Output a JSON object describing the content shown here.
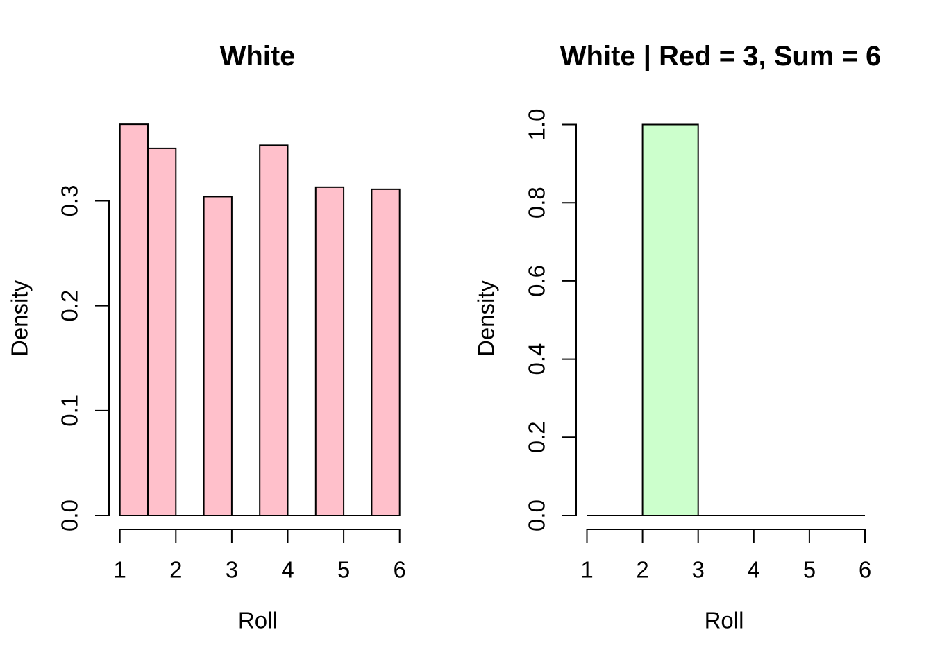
{
  "figure": {
    "background": "#ffffff",
    "text_color": "#000000",
    "axis_color": "#000000"
  },
  "chart_data": [
    {
      "type": "bar",
      "subtype": "histogram-density",
      "title": "White",
      "xlabel": "Roll",
      "ylabel": "Density",
      "x_tick_labels": [
        "1",
        "2",
        "3",
        "4",
        "5",
        "6"
      ],
      "x_ticks": [
        1,
        2,
        3,
        4,
        5,
        6
      ],
      "y_tick_labels": [
        "0.0",
        "0.1",
        "0.2",
        "0.3"
      ],
      "y_ticks": [
        0.0,
        0.1,
        0.2,
        0.3
      ],
      "xlim": [
        1,
        6
      ],
      "ylim": [
        0,
        0.3
      ],
      "breaks": [
        1,
        1.5,
        2,
        2.5,
        3,
        3.5,
        4,
        4.5,
        5,
        5.5,
        6
      ],
      "densities": [
        0.373,
        0.35,
        0,
        0.304,
        0,
        0.353,
        0,
        0.313,
        0,
        0.311
      ],
      "baseline": [
        1,
        6
      ],
      "bar_fill": "#FFC0CB",
      "bar_border": "#000000",
      "grid": false,
      "legend": null
    },
    {
      "type": "bar",
      "subtype": "histogram-density",
      "title": "White | Red = 3, Sum = 6",
      "xlabel": "Roll",
      "ylabel": "Density",
      "x_tick_labels": [
        "1",
        "2",
        "3",
        "4",
        "5",
        "6"
      ],
      "x_ticks": [
        1,
        2,
        3,
        4,
        5,
        6
      ],
      "y_tick_labels": [
        "0.0",
        "0.2",
        "0.4",
        "0.6",
        "0.8",
        "1.0"
      ],
      "y_ticks": [
        0.0,
        0.2,
        0.4,
        0.6,
        0.8,
        1.0
      ],
      "xlim": [
        1,
        6
      ],
      "ylim": [
        0,
        1.0
      ],
      "breaks": [
        1,
        2,
        3,
        4,
        5,
        6
      ],
      "densities": [
        0,
        1.0,
        0,
        0,
        0
      ],
      "baseline": [
        1,
        6
      ],
      "bar_fill": "#CCFFCC",
      "bar_border": "#000000",
      "grid": false,
      "legend": null
    }
  ]
}
